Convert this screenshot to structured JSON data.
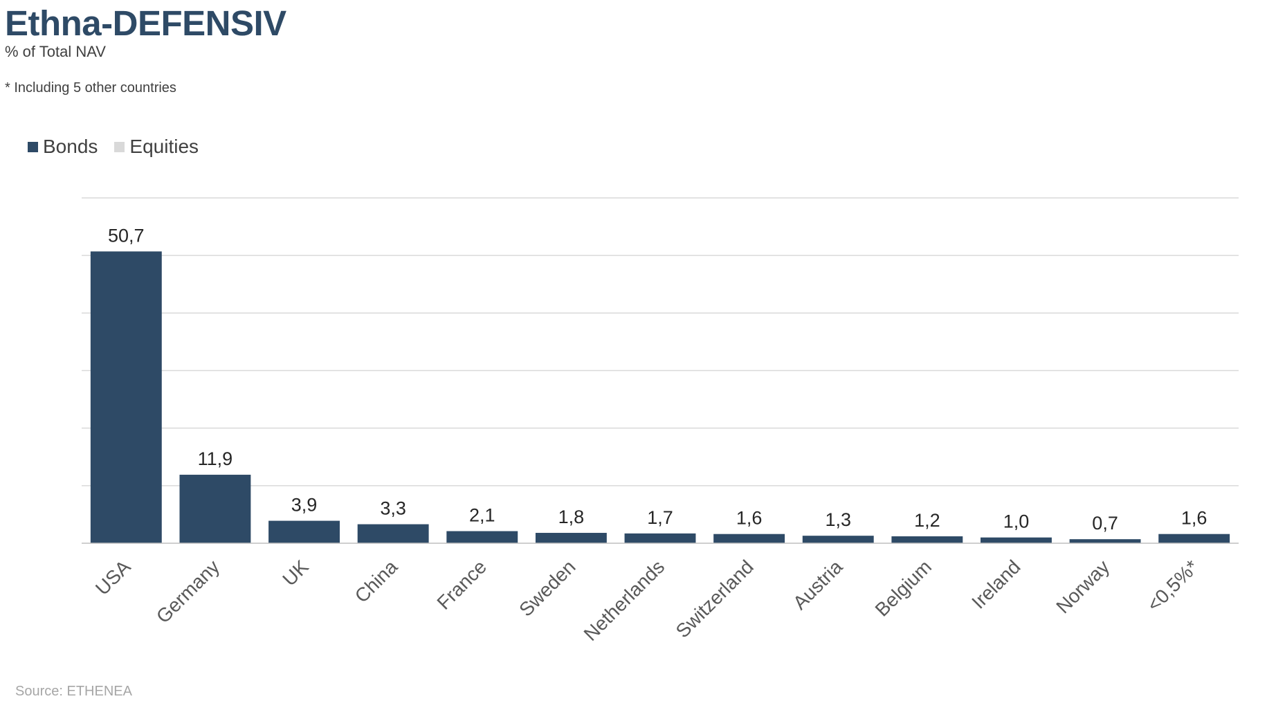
{
  "header": {
    "title": "Ethna-DEFENSIV",
    "subtitle": "% of Total NAV",
    "footnote": "* Including 5 other countries"
  },
  "legend": [
    {
      "label": "Bonds",
      "color": "#2e4a66"
    },
    {
      "label": "Equities",
      "color": "#d9d9d9"
    }
  ],
  "source": "Source: ETHENEA",
  "chart_data": {
    "type": "bar",
    "categories": [
      "USA",
      "Germany",
      "UK",
      "China",
      "France",
      "Sweden",
      "Netherlands",
      "Switzerland",
      "Austria",
      "Belgium",
      "Ireland",
      "Norway",
      "<0,5%*"
    ],
    "series": [
      {
        "name": "Bonds",
        "color": "#2e4a66",
        "values": [
          50.7,
          11.9,
          3.9,
          3.3,
          2.1,
          1.8,
          1.7,
          1.6,
          1.3,
          1.2,
          1.0,
          0.7,
          1.6
        ],
        "labels": [
          "50,7",
          "11,9",
          "3,9",
          "3,3",
          "2,1",
          "1,8",
          "1,7",
          "1,6",
          "1,3",
          "1,2",
          "1,0",
          "0,7",
          "1,6"
        ]
      },
      {
        "name": "Equities",
        "color": "#d9d9d9",
        "values": [
          0,
          0,
          0,
          0,
          0,
          0,
          0,
          0,
          0,
          0,
          0,
          0,
          0
        ]
      }
    ],
    "title": "Ethna-DEFENSIV",
    "subtitle": "% of Total NAV",
    "ylim": [
      0,
      60
    ],
    "grid": true,
    "legend_position": "top-left",
    "gridline_color": "#d9d9d9"
  }
}
